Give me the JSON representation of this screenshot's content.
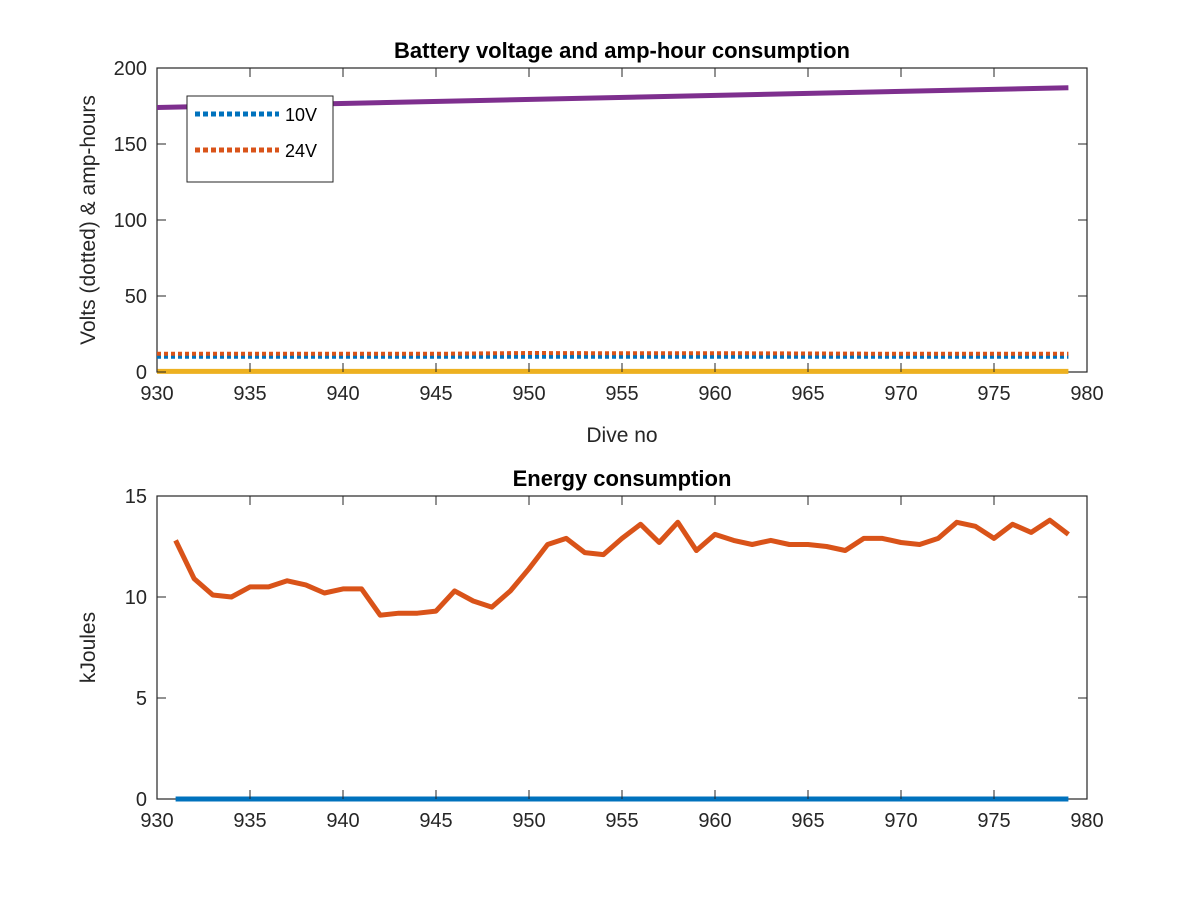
{
  "chart_data": [
    {
      "type": "line",
      "title": "Battery voltage and amp-hour consumption",
      "xlabel": "Dive no",
      "ylabel": "Volts (dotted) & amp-hours",
      "xlim": [
        930,
        980
      ],
      "ylim": [
        0,
        200
      ],
      "xticks": [
        930,
        935,
        940,
        945,
        950,
        955,
        960,
        965,
        970,
        975,
        980
      ],
      "yticks": [
        0,
        50,
        100,
        150,
        200
      ],
      "grid": false,
      "legend_position": "top-left",
      "series": [
        {
          "name": "10V",
          "color": "#0072BD",
          "style": "dotted",
          "x": [
            930,
            979
          ],
          "y": [
            10,
            10
          ]
        },
        {
          "name": "24V",
          "color": "#D95319",
          "style": "dotted",
          "x": [
            930,
            935,
            940,
            945,
            950,
            955,
            960,
            965,
            970,
            975,
            979
          ],
          "y": [
            12,
            12,
            12,
            12,
            12.5,
            12.3,
            12.4,
            12.2,
            12,
            12,
            12
          ]
        },
        {
          "color": "#EDB120",
          "style": "solid",
          "x": [
            930,
            979
          ],
          "y": [
            0.4,
            0.4
          ]
        },
        {
          "color": "#7E2F8E",
          "style": "solid",
          "x": [
            930,
            979
          ],
          "y": [
            174,
            187
          ]
        }
      ]
    },
    {
      "type": "line",
      "title": "Energy consumption",
      "xlabel": "",
      "ylabel": "kJoules",
      "xlim": [
        930,
        980
      ],
      "ylim": [
        0,
        15
      ],
      "xticks": [
        930,
        935,
        940,
        945,
        950,
        955,
        960,
        965,
        970,
        975,
        980
      ],
      "yticks": [
        0,
        5,
        10,
        15
      ],
      "grid": false,
      "series": [
        {
          "color": "#D95319",
          "style": "solid",
          "x": [
            931,
            932,
            933,
            934,
            935,
            936,
            937,
            938,
            939,
            940,
            941,
            942,
            943,
            944,
            945,
            946,
            947,
            948,
            949,
            950,
            951,
            952,
            953,
            954,
            955,
            956,
            957,
            958,
            959,
            960,
            961,
            962,
            963,
            964,
            965,
            966,
            967,
            968,
            969,
            970,
            971,
            972,
            973,
            974,
            975,
            976,
            977,
            978,
            979
          ],
          "y": [
            12.8,
            10.9,
            10.1,
            10.0,
            10.5,
            10.5,
            10.8,
            10.6,
            10.2,
            10.4,
            10.4,
            9.1,
            9.2,
            9.2,
            9.3,
            10.3,
            9.8,
            9.5,
            10.3,
            11.4,
            12.6,
            12.9,
            12.2,
            12.1,
            12.9,
            13.6,
            12.7,
            13.7,
            12.3,
            13.1,
            12.8,
            12.6,
            12.8,
            12.6,
            12.6,
            12.5,
            12.3,
            12.9,
            12.9,
            12.7,
            12.6,
            12.9,
            13.7,
            13.5,
            12.9,
            13.6,
            13.2,
            13.8,
            13.1
          ]
        },
        {
          "color": "#0072BD",
          "style": "solid",
          "x": [
            931,
            979
          ],
          "y": [
            0,
            0
          ]
        }
      ]
    }
  ]
}
